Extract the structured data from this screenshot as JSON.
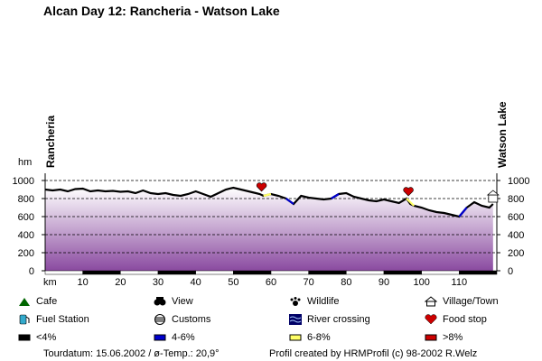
{
  "title": "Alcan Day 12: Rancheria - Watson Lake",
  "chart_data": {
    "type": "area",
    "ylabel": "hm",
    "xlabel": "km",
    "start_label": "Rancheria",
    "end_label": "Watson Lake",
    "ylim": [
      0,
      1000
    ],
    "yticks": [
      "0",
      "200",
      "400",
      "600",
      "800",
      "1000"
    ],
    "xlim": [
      0,
      120
    ],
    "xticks": [
      "10",
      "20",
      "30",
      "40",
      "50",
      "60",
      "70",
      "80",
      "90",
      "100",
      "110"
    ],
    "grid": true,
    "x": [
      0,
      2,
      4,
      6,
      8,
      10,
      12,
      14,
      16,
      18,
      20,
      22,
      24,
      26,
      28,
      30,
      32,
      34,
      36,
      38,
      40,
      42,
      44,
      46,
      48,
      50,
      52,
      54,
      56,
      57,
      58,
      60,
      62,
      64,
      66,
      68,
      70,
      72,
      74,
      76,
      78,
      80,
      82,
      84,
      86,
      88,
      90,
      92,
      94,
      96,
      97,
      98,
      100,
      102,
      104,
      106,
      108,
      110,
      112,
      114,
      116,
      118,
      119
    ],
    "y": [
      900,
      890,
      900,
      880,
      905,
      910,
      880,
      890,
      880,
      885,
      875,
      880,
      860,
      890,
      860,
      850,
      860,
      840,
      830,
      850,
      880,
      850,
      820,
      860,
      900,
      920,
      900,
      880,
      860,
      850,
      830,
      850,
      830,
      800,
      740,
      830,
      810,
      800,
      790,
      800,
      850,
      860,
      820,
      800,
      780,
      770,
      790,
      770,
      750,
      800,
      740,
      720,
      700,
      670,
      650,
      640,
      620,
      600,
      700,
      760,
      720,
      700,
      740
    ],
    "markers": [
      {
        "x": 57.5,
        "type": "food-stop"
      },
      {
        "x": 96.5,
        "type": "food-stop"
      },
      {
        "x": 119,
        "type": "village-town"
      }
    ]
  },
  "legend": [
    {
      "label": "Cafe",
      "icon": "cafe-icon"
    },
    {
      "label": "View",
      "icon": "binoculars-icon"
    },
    {
      "label": "Wildlife",
      "icon": "paw-icon"
    },
    {
      "label": "Village/Town",
      "icon": "house-icon"
    },
    {
      "label": "Fuel Station",
      "icon": "fuel-icon"
    },
    {
      "label": "Customs",
      "icon": "customs-icon"
    },
    {
      "label": "River crossing",
      "icon": "river-icon"
    },
    {
      "label": "Food stop",
      "icon": "heart-icon"
    },
    {
      "label": "<4%",
      "icon": "grade-low-icon",
      "color": "#000000"
    },
    {
      "label": "4-6%",
      "icon": "grade-mid-icon",
      "color": "#0000cc"
    },
    {
      "label": "6-8%",
      "icon": "grade-high-icon",
      "color": "#ffff66"
    },
    {
      "label": ">8%",
      "icon": "grade-steep-icon",
      "color": "#cc0000"
    }
  ],
  "footer": {
    "left": "Tourdatum: 15.06.2002  /  ø-Temp.: 20,9°",
    "right": "Profil created by HRMProfil (c) 98-2002 R.Welz"
  },
  "colors": {
    "fill_top": "#ffffff",
    "fill_bottom": "#8a4aa0",
    "grid": "#000000",
    "line": "#000000"
  }
}
